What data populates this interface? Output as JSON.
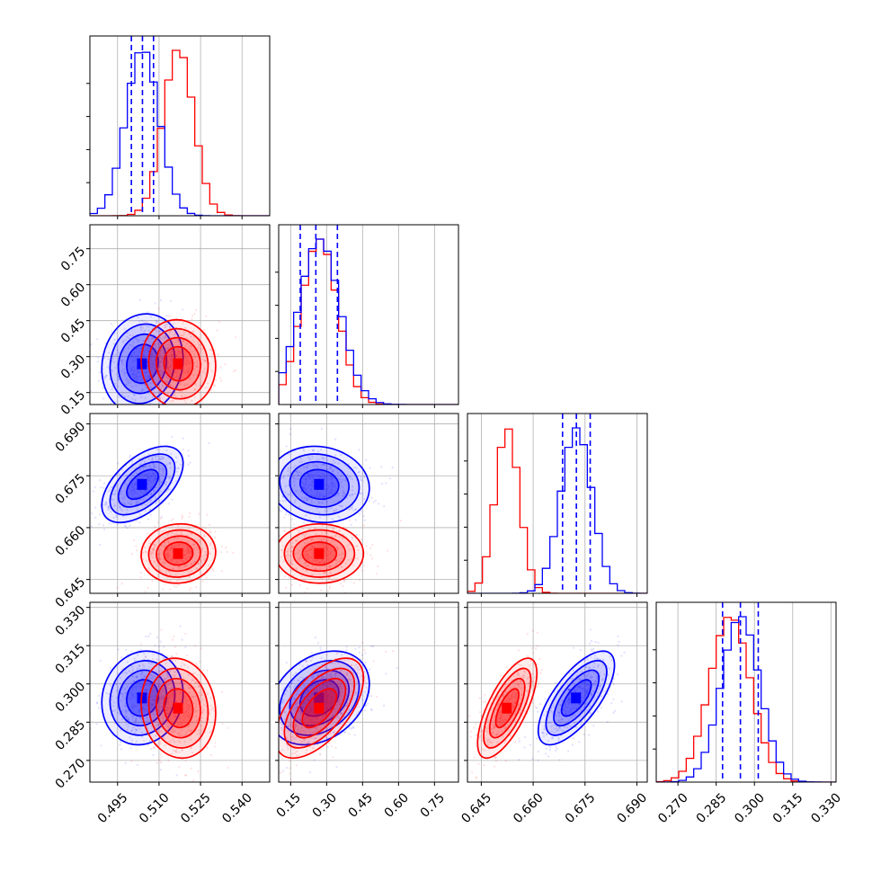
{
  "colors": {
    "series_a": "#0000ff",
    "series_b": "#ff0000",
    "grid": "#b0b0b0",
    "frame": "#000000"
  },
  "chart_data": {
    "type": "corner",
    "parameters": 4,
    "grid": true,
    "series": [
      {
        "color": "#0000ff",
        "mean": [
          0.504,
          0.27,
          0.6725,
          0.2945
        ],
        "sd": [
          0.006,
          0.085,
          0.0045,
          0.0075
        ],
        "quantile_lines": [
          [
            0.5,
            0.504,
            0.508
          ],
          [
            0.19,
            0.255,
            0.345
          ],
          [
            0.6685,
            0.6725,
            0.6765
          ],
          [
            0.2875,
            0.2945,
            0.3015
          ]
        ]
      },
      {
        "color": "#ff0000",
        "mean": [
          0.517,
          0.27,
          0.6525,
          0.2905
        ],
        "sd": [
          0.0055,
          0.075,
          0.0035,
          0.008
        ]
      }
    ],
    "correlations": {
      "blue": {
        "0-1": 0.1,
        "0-2": 0.55,
        "0-3": 0.1,
        "1-2": -0.1,
        "1-3": 0.3,
        "2-3": 0.7
      },
      "red": {
        "0-1": -0.05,
        "0-2": 0.05,
        "0-3": -0.1,
        "1-2": 0.0,
        "1-3": 0.6,
        "2-3": 0.7
      }
    },
    "axes": [
      {
        "range": [
          0.485,
          0.55
        ],
        "ticks": [
          "0.495",
          "0.510",
          "0.525",
          "0.540"
        ],
        "tick_values": [
          0.495,
          0.51,
          0.525,
          0.54
        ]
      },
      {
        "range": [
          0.1,
          0.85
        ],
        "ticks": [
          "0.15",
          "0.30",
          "0.45",
          "0.60",
          "0.75"
        ],
        "tick_values": [
          0.15,
          0.3,
          0.45,
          0.6,
          0.75
        ]
      },
      {
        "range": [
          0.641,
          0.693
        ],
        "ticks": [
          "0.645",
          "0.660",
          "0.675",
          "0.690"
        ],
        "tick_values": [
          0.645,
          0.66,
          0.675,
          0.69
        ]
      },
      {
        "range": [
          0.2615,
          0.332
        ],
        "ticks": [
          "0.270",
          "0.285",
          "0.300",
          "0.315",
          "0.330"
        ],
        "tick_values": [
          0.27,
          0.285,
          0.3,
          0.315,
          0.33
        ]
      }
    ]
  }
}
